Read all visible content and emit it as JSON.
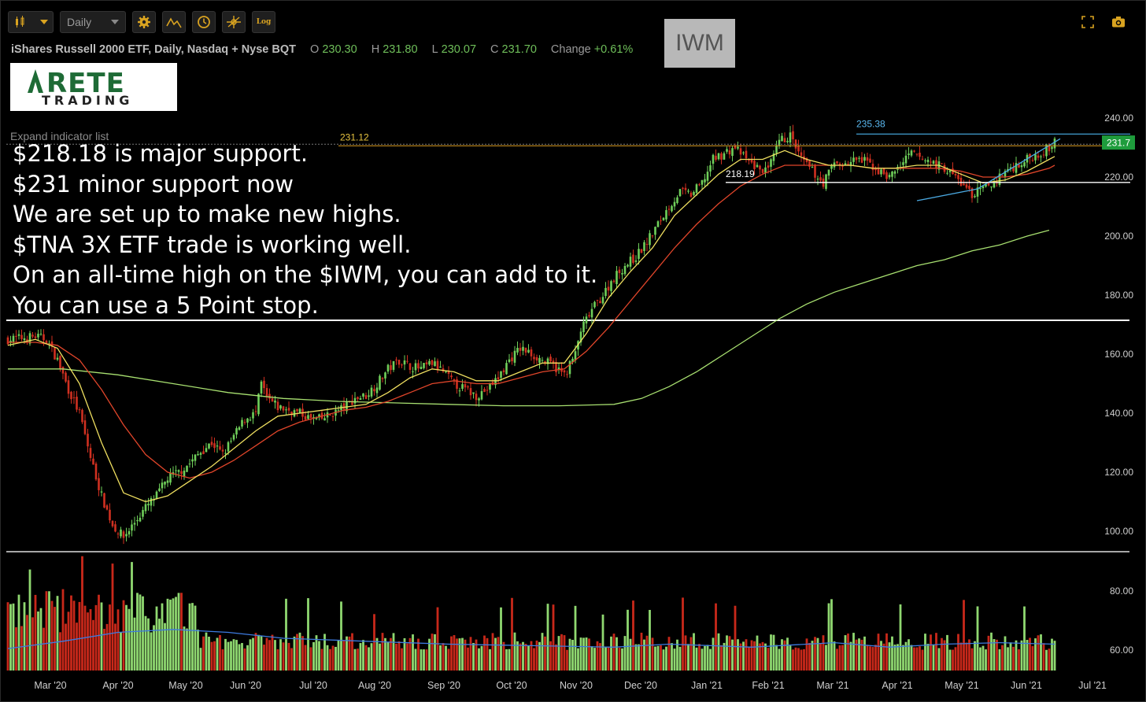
{
  "toolbar": {
    "interval": "Daily",
    "log_label": "Log"
  },
  "header": {
    "symbol_title": "iShares Russell 2000 ETF, Daily, Nasdaq + Nyse BQT",
    "open_label": "O",
    "open": "230.30",
    "high_label": "H",
    "high": "231.80",
    "low_label": "L",
    "low": "230.07",
    "close_label": "C",
    "close": "231.70",
    "change_label": "Change",
    "change": "+0.61%",
    "ticker_box": "IWM",
    "expand_label": "Expand indicator list"
  },
  "logo": {
    "main": "RETE",
    "sub": "TRADING"
  },
  "notes": [
    "$218.18 is major support.",
    "$231 minor support now",
    "We are set up to make new highs.",
    "$TNA 3X ETF trade is working well.",
    "On an all-time high on the $IWM, you can add to it.",
    "You can use a 5 Point stop."
  ],
  "colors": {
    "up": "#6fcf5a",
    "down": "#d03020",
    "ma_fast": "#f0e060",
    "ma_mid": "#e0452a",
    "ma_slow": "#a8e070",
    "trend": "#4aa8e0",
    "volume_ma": "#3d7be0",
    "price_tag": "#1e9c3c"
  },
  "chart_data": {
    "type": "candlestick",
    "price_axis": {
      "ticks": [
        100,
        120,
        140,
        160,
        180,
        200,
        220,
        240
      ],
      "tick_labels": [
        "100.00",
        "120.00",
        "140.00",
        "160.00",
        "180.00",
        "200.00",
        "220.00",
        "240.00"
      ]
    },
    "volume_axis": {
      "ticks": [
        60,
        80
      ],
      "tick_labels": [
        "60.00",
        "80.00"
      ]
    },
    "months": [
      "Mar '20",
      "Apr '20",
      "May '20",
      "Jun '20",
      "Jul '20",
      "Aug '20",
      "Sep '20",
      "Oct '20",
      "Nov '20",
      "Dec '20",
      "Jan '21",
      "Feb '21",
      "Mar '21",
      "Apr '21",
      "May '21",
      "Jun '21",
      "Jul '21"
    ],
    "annotations": {
      "level_231": {
        "value": 231.12,
        "label": "231.12"
      },
      "level_218": {
        "value": 218.19,
        "label": "218.19"
      },
      "high_235": {
        "value": 235.38,
        "label": "235.38"
      },
      "last_price_tag": {
        "value": 231.7,
        "label": "231.7"
      }
    },
    "close_path": [
      [
        0,
        165
      ],
      [
        10,
        166
      ],
      [
        14,
        165
      ],
      [
        18,
        158
      ],
      [
        22,
        148
      ],
      [
        26,
        140
      ],
      [
        30,
        125
      ],
      [
        34,
        112
      ],
      [
        38,
        102
      ],
      [
        42,
        98
      ],
      [
        46,
        103
      ],
      [
        50,
        108
      ],
      [
        54,
        112
      ],
      [
        58,
        118
      ],
      [
        62,
        120
      ],
      [
        66,
        123
      ],
      [
        70,
        127
      ],
      [
        74,
        130
      ],
      [
        78,
        126
      ],
      [
        82,
        132
      ],
      [
        86,
        138
      ],
      [
        90,
        140
      ],
      [
        92,
        150
      ],
      [
        94,
        145
      ],
      [
        98,
        142
      ],
      [
        102,
        141
      ],
      [
        106,
        140
      ],
      [
        110,
        138
      ],
      [
        114,
        138
      ],
      [
        118,
        140
      ],
      [
        122,
        142
      ],
      [
        126,
        145
      ],
      [
        130,
        146
      ],
      [
        134,
        150
      ],
      [
        138,
        155
      ],
      [
        142,
        158
      ],
      [
        146,
        156
      ],
      [
        150,
        155
      ],
      [
        154,
        157
      ],
      [
        158,
        154
      ],
      [
        162,
        150
      ],
      [
        166,
        148
      ],
      [
        170,
        146
      ],
      [
        174,
        148
      ],
      [
        178,
        152
      ],
      [
        182,
        158
      ],
      [
        186,
        162
      ],
      [
        190,
        160
      ],
      [
        194,
        158
      ],
      [
        198,
        156
      ],
      [
        202,
        153
      ],
      [
        206,
        160
      ],
      [
        208,
        168
      ],
      [
        212,
        175
      ],
      [
        216,
        180
      ],
      [
        220,
        186
      ],
      [
        224,
        190
      ],
      [
        228,
        193
      ],
      [
        232,
        198
      ],
      [
        236,
        204
      ],
      [
        240,
        210
      ],
      [
        244,
        215
      ],
      [
        248,
        214
      ],
      [
        252,
        218
      ],
      [
        256,
        226
      ],
      [
        260,
        228
      ],
      [
        264,
        230
      ],
      [
        268,
        226
      ],
      [
        272,
        223
      ],
      [
        276,
        222
      ],
      [
        280,
        232
      ],
      [
        284,
        234
      ],
      [
        288,
        226
      ],
      [
        292,
        222
      ],
      [
        296,
        218
      ],
      [
        300,
        225
      ],
      [
        304,
        224
      ],
      [
        308,
        226
      ],
      [
        312,
        225
      ],
      [
        316,
        222
      ],
      [
        320,
        220
      ],
      [
        324,
        224
      ],
      [
        328,
        228
      ],
      [
        332,
        226
      ],
      [
        336,
        225
      ],
      [
        340,
        223
      ],
      [
        344,
        220
      ],
      [
        348,
        216
      ],
      [
        350,
        214
      ],
      [
        354,
        216
      ],
      [
        358,
        218
      ],
      [
        362,
        222
      ],
      [
        366,
        224
      ],
      [
        370,
        226
      ],
      [
        374,
        228
      ],
      [
        378,
        230
      ],
      [
        380,
        231.7
      ]
    ],
    "ma_fast": [
      [
        0,
        163
      ],
      [
        10,
        165
      ],
      [
        18,
        162
      ],
      [
        26,
        150
      ],
      [
        34,
        130
      ],
      [
        42,
        113
      ],
      [
        50,
        110
      ],
      [
        58,
        112
      ],
      [
        66,
        117
      ],
      [
        74,
        122
      ],
      [
        82,
        128
      ],
      [
        90,
        134
      ],
      [
        98,
        139
      ],
      [
        106,
        140
      ],
      [
        114,
        141
      ],
      [
        122,
        142
      ],
      [
        130,
        143
      ],
      [
        138,
        147
      ],
      [
        146,
        152
      ],
      [
        154,
        155
      ],
      [
        162,
        154
      ],
      [
        170,
        151
      ],
      [
        178,
        151
      ],
      [
        186,
        154
      ],
      [
        194,
        157
      ],
      [
        202,
        157
      ],
      [
        210,
        167
      ],
      [
        218,
        179
      ],
      [
        226,
        188
      ],
      [
        234,
        196
      ],
      [
        242,
        207
      ],
      [
        250,
        214
      ],
      [
        258,
        221
      ],
      [
        266,
        226
      ],
      [
        274,
        226
      ],
      [
        282,
        229
      ],
      [
        290,
        226
      ],
      [
        298,
        224
      ],
      [
        306,
        224
      ],
      [
        314,
        223
      ],
      [
        322,
        223
      ],
      [
        330,
        224
      ],
      [
        338,
        224
      ],
      [
        346,
        221
      ],
      [
        354,
        218
      ],
      [
        362,
        219
      ],
      [
        370,
        222
      ],
      [
        378,
        226
      ],
      [
        380,
        227
      ]
    ],
    "ma_mid": [
      [
        0,
        164
      ],
      [
        10,
        164
      ],
      [
        18,
        163
      ],
      [
        26,
        158
      ],
      [
        34,
        148
      ],
      [
        42,
        136
      ],
      [
        50,
        126
      ],
      [
        58,
        120
      ],
      [
        66,
        118
      ],
      [
        74,
        120
      ],
      [
        82,
        124
      ],
      [
        90,
        129
      ],
      [
        98,
        134
      ],
      [
        106,
        137
      ],
      [
        114,
        139
      ],
      [
        122,
        141
      ],
      [
        130,
        142
      ],
      [
        138,
        144
      ],
      [
        146,
        147
      ],
      [
        154,
        150
      ],
      [
        162,
        151
      ],
      [
        170,
        150
      ],
      [
        178,
        150
      ],
      [
        186,
        152
      ],
      [
        194,
        154
      ],
      [
        202,
        155
      ],
      [
        210,
        161
      ],
      [
        218,
        169
      ],
      [
        226,
        178
      ],
      [
        234,
        187
      ],
      [
        242,
        196
      ],
      [
        250,
        204
      ],
      [
        258,
        211
      ],
      [
        266,
        217
      ],
      [
        274,
        221
      ],
      [
        282,
        224
      ],
      [
        290,
        224
      ],
      [
        298,
        224
      ],
      [
        306,
        224
      ],
      [
        314,
        223
      ],
      [
        322,
        223
      ],
      [
        330,
        223
      ],
      [
        338,
        223
      ],
      [
        346,
        222
      ],
      [
        354,
        220
      ],
      [
        362,
        220
      ],
      [
        370,
        221
      ],
      [
        378,
        223
      ],
      [
        380,
        224
      ]
    ],
    "ma_slow": [
      [
        0,
        155
      ],
      [
        20,
        155
      ],
      [
        40,
        153
      ],
      [
        60,
        150
      ],
      [
        80,
        147
      ],
      [
        100,
        145
      ],
      [
        120,
        144
      ],
      [
        140,
        143.5
      ],
      [
        160,
        143
      ],
      [
        180,
        142.5
      ],
      [
        200,
        142.5
      ],
      [
        220,
        143
      ],
      [
        230,
        145
      ],
      [
        240,
        149
      ],
      [
        250,
        154
      ],
      [
        260,
        160
      ],
      [
        270,
        166
      ],
      [
        280,
        172
      ],
      [
        290,
        177
      ],
      [
        300,
        181
      ],
      [
        310,
        184
      ],
      [
        320,
        187
      ],
      [
        330,
        190
      ],
      [
        340,
        192
      ],
      [
        350,
        195
      ],
      [
        360,
        197
      ],
      [
        370,
        200
      ],
      [
        378,
        202
      ]
    ],
    "trendline": [
      [
        330,
        212
      ],
      [
        352,
        216
      ],
      [
        382,
        233
      ]
    ],
    "volume_note": "volume bars in bottom pane with blue moving average, values ~55-85 (millions)"
  }
}
